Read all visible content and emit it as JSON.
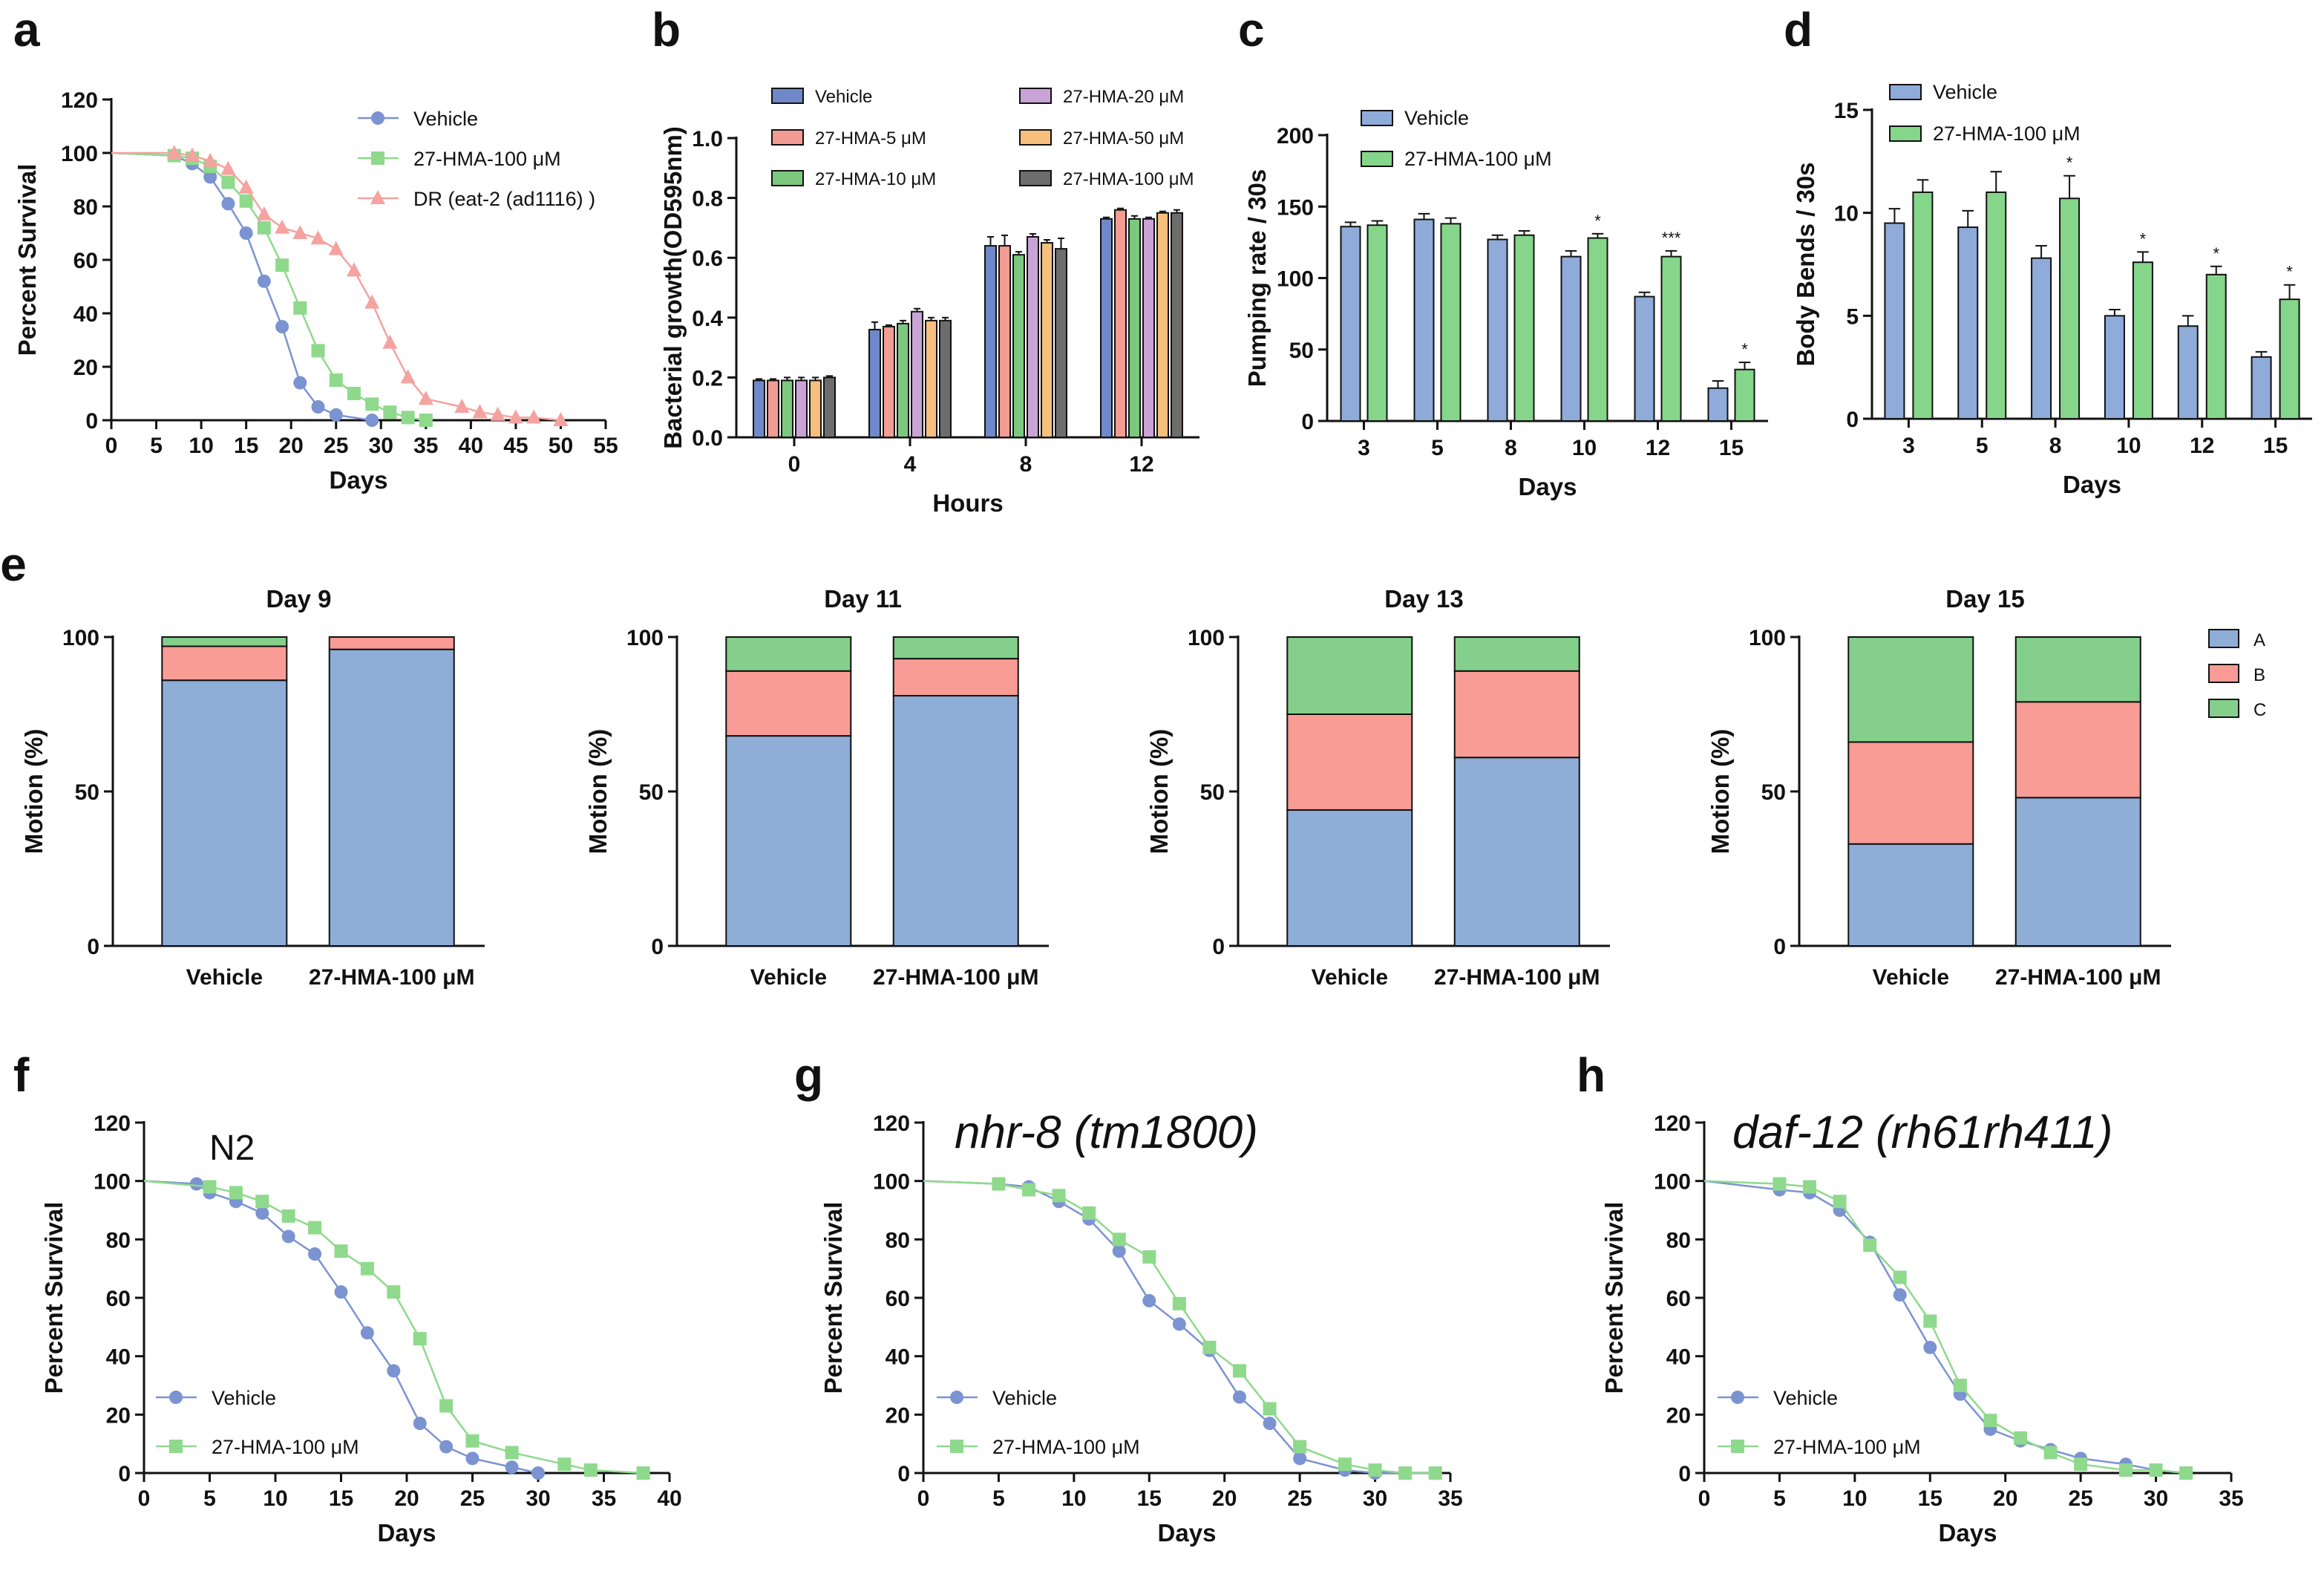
{
  "panels": {
    "a": {
      "label": "a",
      "chart_data": {
        "type": "line",
        "xlabel": "Days",
        "ylabel": "Percent Survival",
        "xlim": [
          0,
          55
        ],
        "ylim": [
          0,
          120
        ],
        "xticks": [
          0,
          5,
          10,
          15,
          20,
          25,
          30,
          35,
          40,
          45,
          50,
          55
        ],
        "yticks": [
          0,
          20,
          40,
          60,
          80,
          100,
          120
        ],
        "legend_position": "top-right",
        "series": [
          {
            "name": "Vehicle",
            "marker": "circle",
            "color": "#7b93d1",
            "x": [
              0,
              7,
              9,
              11,
              13,
              15,
              17,
              19,
              21,
              23,
              25,
              29
            ],
            "y": [
              100,
              99,
              96,
              91,
              81,
              70,
              52,
              35,
              14,
              5,
              2,
              0
            ]
          },
          {
            "name": "27-HMA-100 μM",
            "marker": "square",
            "color": "#8fd98c",
            "x": [
              0,
              7,
              9,
              11,
              13,
              15,
              17,
              19,
              21,
              23,
              25,
              27,
              29,
              31,
              33,
              35
            ],
            "y": [
              100,
              99,
              98,
              95,
              89,
              82,
              72,
              58,
              42,
              26,
              15,
              10,
              6,
              3,
              1,
              0
            ]
          },
          {
            "name": "DR (eat-2 (ad1116) )",
            "marker": "triangle",
            "color": "#f4a3a0",
            "x": [
              0,
              7,
              9,
              11,
              13,
              15,
              17,
              19,
              21,
              23,
              25,
              27,
              29,
              31,
              33,
              35,
              39,
              41,
              43,
              45,
              47,
              50
            ],
            "y": [
              100,
              100,
              99,
              97,
              94,
              87,
              77,
              72,
              70,
              68,
              64,
              56,
              44,
              29,
              16,
              8,
              5,
              3,
              2,
              1,
              1,
              0
            ]
          }
        ]
      }
    },
    "b": {
      "label": "b",
      "chart_data": {
        "type": "bar",
        "xlabel": "Hours",
        "ylabel": "Bacterial growth(OD595nm)",
        "ylim": [
          0,
          1.0
        ],
        "yticks": [
          "0.0",
          "0.2",
          "0.4",
          "0.6",
          "0.8",
          "1.0"
        ],
        "categories": [
          "0",
          "4",
          "8",
          "12"
        ],
        "legend_position": "top",
        "series": [
          {
            "name": "Vehicle",
            "color": "#6f88c9",
            "values": [
              0.19,
              0.36,
              0.64,
              0.73
            ],
            "errors": [
              0.005,
              0.025,
              0.03,
              0.005
            ]
          },
          {
            "name": "27-HMA-5 μM",
            "color": "#f39c93",
            "values": [
              0.19,
              0.37,
              0.64,
              0.76
            ],
            "errors": [
              0.005,
              0.005,
              0.035,
              0.005
            ]
          },
          {
            "name": "27-HMA-10 μM",
            "color": "#7cc87e",
            "values": [
              0.19,
              0.38,
              0.61,
              0.73
            ],
            "errors": [
              0.01,
              0.01,
              0.01,
              0.01
            ]
          },
          {
            "name": "27-HMA-20 μM",
            "color": "#c9a3d6",
            "values": [
              0.19,
              0.42,
              0.67,
              0.73
            ],
            "errors": [
              0.01,
              0.01,
              0.01,
              0.005
            ]
          },
          {
            "name": "27-HMA-50 μM",
            "color": "#f7bf7c",
            "values": [
              0.19,
              0.39,
              0.65,
              0.75
            ],
            "errors": [
              0.01,
              0.01,
              0.01,
              0.005
            ]
          },
          {
            "name": "27-HMA-100 μM",
            "color": "#6d6d6d",
            "values": [
              0.2,
              0.39,
              0.63,
              0.75
            ],
            "errors": [
              0.005,
              0.01,
              0.035,
              0.01
            ]
          }
        ]
      }
    },
    "c": {
      "label": "c",
      "chart_data": {
        "type": "bar",
        "xlabel": "Days",
        "ylabel": "Pumping rate / 30s",
        "ylim": [
          0,
          200
        ],
        "yticks": [
          0,
          50,
          100,
          150,
          200
        ],
        "categories": [
          "3",
          "5",
          "8",
          "10",
          "12",
          "15"
        ],
        "legend_position": "top-left",
        "significance": [
          "",
          "",
          "",
          "*",
          "***",
          "*"
        ],
        "series": [
          {
            "name": "Vehicle",
            "color": "#8fabd9",
            "values": [
              136,
              141,
              127,
              115,
              87,
              23
            ],
            "errors": [
              3,
              4,
              3,
              4,
              3,
              5
            ]
          },
          {
            "name": "27-HMA-100 μM",
            "color": "#85d68a",
            "values": [
              137,
              138,
              130,
              128,
              115,
              36
            ],
            "errors": [
              3,
              4,
              3,
              3,
              4,
              5
            ]
          }
        ]
      }
    },
    "d": {
      "label": "d",
      "chart_data": {
        "type": "bar",
        "xlabel": "Days",
        "ylabel": "Body Bends / 30s",
        "ylim": [
          0,
          15
        ],
        "yticks": [
          0,
          5,
          10,
          15
        ],
        "categories": [
          "3",
          "5",
          "8",
          "10",
          "12",
          "15"
        ],
        "legend_position": "top-left",
        "significance": [
          "",
          "",
          "*",
          "*",
          "*",
          "*"
        ],
        "series": [
          {
            "name": "Vehicle",
            "color": "#8fabd9",
            "values": [
              9.5,
              9.3,
              7.8,
              5.0,
              4.5,
              3.0
            ],
            "errors": [
              0.7,
              0.8,
              0.6,
              0.3,
              0.5,
              0.25
            ]
          },
          {
            "name": "27-HMA-100 μM",
            "color": "#85d68a",
            "values": [
              11.0,
              11.0,
              10.7,
              7.6,
              7.0,
              5.8
            ],
            "errors": [
              0.6,
              1.0,
              1.1,
              0.5,
              0.4,
              0.7
            ]
          }
        ]
      }
    },
    "e": {
      "label": "e",
      "legend": [
        "A",
        "B",
        "C"
      ],
      "legend_colors": [
        "#8eaed8",
        "#f99c95",
        "#84cf8c"
      ],
      "ylabel": "Motion (%)",
      "chart_data": [
        {
          "type": "bar",
          "stacked": true,
          "title": "Day 9",
          "ylim": [
            0,
            100
          ],
          "yticks": [
            0,
            50,
            100
          ],
          "categories": [
            "Vehicle",
            "27-HMA-100 μM"
          ],
          "series": [
            {
              "name": "A",
              "values": [
                86,
                96
              ]
            },
            {
              "name": "B",
              "values": [
                11,
                4
              ]
            },
            {
              "name": "C",
              "values": [
                3,
                0
              ]
            }
          ]
        },
        {
          "type": "bar",
          "stacked": true,
          "title": "Day 11",
          "ylim": [
            0,
            100
          ],
          "yticks": [
            0,
            50,
            100
          ],
          "categories": [
            "Vehicle",
            "27-HMA-100 μM"
          ],
          "series": [
            {
              "name": "A",
              "values": [
                68,
                81
              ]
            },
            {
              "name": "B",
              "values": [
                21,
                12
              ]
            },
            {
              "name": "C",
              "values": [
                11,
                7
              ]
            }
          ]
        },
        {
          "type": "bar",
          "stacked": true,
          "title": "Day 13",
          "ylim": [
            0,
            100
          ],
          "yticks": [
            0,
            50,
            100
          ],
          "categories": [
            "Vehicle",
            "27-HMA-100 μM"
          ],
          "series": [
            {
              "name": "A",
              "values": [
                44,
                61
              ]
            },
            {
              "name": "B",
              "values": [
                31,
                28
              ]
            },
            {
              "name": "C",
              "values": [
                25,
                11
              ]
            }
          ]
        },
        {
          "type": "bar",
          "stacked": true,
          "title": "Day 15",
          "ylim": [
            0,
            100
          ],
          "yticks": [
            0,
            50,
            100
          ],
          "categories": [
            "Vehicle",
            "27-HMA-100 μM"
          ],
          "series": [
            {
              "name": "A",
              "values": [
                33,
                48
              ]
            },
            {
              "name": "B",
              "values": [
                33,
                31
              ]
            },
            {
              "name": "C",
              "values": [
                34,
                21
              ]
            }
          ]
        }
      ]
    },
    "f": {
      "label": "f",
      "annotation": "N2",
      "chart_data": {
        "type": "line",
        "xlabel": "Days",
        "ylabel": "Percent Survival",
        "xlim": [
          0,
          40
        ],
        "ylim": [
          0,
          120
        ],
        "xticks": [
          0,
          5,
          10,
          15,
          20,
          25,
          30,
          35,
          40
        ],
        "yticks": [
          0,
          20,
          40,
          60,
          80,
          100,
          120
        ],
        "legend_position": "bottom-left",
        "series": [
          {
            "name": "Vehicle",
            "marker": "circle",
            "color": "#7b93d1",
            "x": [
              0,
              4,
              5,
              7,
              9,
              11,
              13,
              15,
              17,
              19,
              21,
              23,
              25,
              28,
              30
            ],
            "y": [
              100,
              99,
              96,
              93,
              89,
              81,
              75,
              62,
              48,
              35,
              17,
              9,
              5,
              2,
              0
            ]
          },
          {
            "name": "27-HMA-100 μM",
            "marker": "square",
            "color": "#8fd98c",
            "x": [
              0,
              5,
              7,
              9,
              11,
              13,
              15,
              17,
              19,
              21,
              23,
              25,
              28,
              32,
              34,
              38
            ],
            "y": [
              100,
              98,
              96,
              93,
              88,
              84,
              76,
              70,
              62,
              46,
              23,
              11,
              7,
              3,
              1,
              0
            ]
          }
        ]
      }
    },
    "g": {
      "label": "g",
      "annotation": "nhr-8 (tm1800)",
      "chart_data": {
        "type": "line",
        "xlabel": "Days",
        "ylabel": "Percent Survival",
        "xlim": [
          0,
          35
        ],
        "ylim": [
          0,
          120
        ],
        "xticks": [
          0,
          5,
          10,
          15,
          20,
          25,
          30,
          35
        ],
        "yticks": [
          0,
          20,
          40,
          60,
          80,
          100,
          120
        ],
        "legend_position": "bottom-left",
        "series": [
          {
            "name": "Vehicle",
            "marker": "circle",
            "color": "#7b93d1",
            "x": [
              0,
              5,
              7,
              9,
              11,
              13,
              15,
              17,
              19,
              21,
              23,
              25,
              28,
              30,
              32,
              34
            ],
            "y": [
              100,
              99,
              98,
              93,
              87,
              76,
              59,
              51,
              42,
              26,
              17,
              5,
              1,
              0,
              0,
              0
            ]
          },
          {
            "name": "27-HMA-100 μM",
            "marker": "square",
            "color": "#8fd98c",
            "x": [
              0,
              5,
              7,
              9,
              11,
              13,
              15,
              17,
              19,
              21,
              23,
              25,
              28,
              30,
              32,
              34
            ],
            "y": [
              100,
              99,
              97,
              95,
              89,
              80,
              74,
              58,
              43,
              35,
              22,
              9,
              3,
              1,
              0,
              0
            ]
          }
        ]
      }
    },
    "h": {
      "label": "h",
      "annotation": "daf-12 (rh61rh411)",
      "chart_data": {
        "type": "line",
        "xlabel": "Days",
        "ylabel": "Percent Survival",
        "xlim": [
          0,
          35
        ],
        "ylim": [
          0,
          120
        ],
        "xticks": [
          0,
          5,
          10,
          15,
          20,
          25,
          30,
          35
        ],
        "yticks": [
          0,
          20,
          40,
          60,
          80,
          100,
          120
        ],
        "legend_position": "bottom-left",
        "series": [
          {
            "name": "Vehicle",
            "marker": "circle",
            "color": "#7b93d1",
            "x": [
              0,
              5,
              7,
              9,
              11,
              13,
              15,
              17,
              19,
              21,
              23,
              25,
              28,
              30,
              32
            ],
            "y": [
              100,
              97,
              96,
              90,
              79,
              61,
              43,
              27,
              15,
              11,
              8,
              5,
              3,
              1,
              0
            ]
          },
          {
            "name": "27-HMA-100 μM",
            "marker": "square",
            "color": "#8fd98c",
            "x": [
              0,
              5,
              7,
              9,
              11,
              13,
              15,
              17,
              19,
              21,
              23,
              25,
              28,
              30,
              32
            ],
            "y": [
              100,
              99,
              98,
              93,
              78,
              67,
              52,
              30,
              18,
              12,
              7,
              3,
              1,
              1,
              0
            ]
          }
        ]
      }
    }
  }
}
